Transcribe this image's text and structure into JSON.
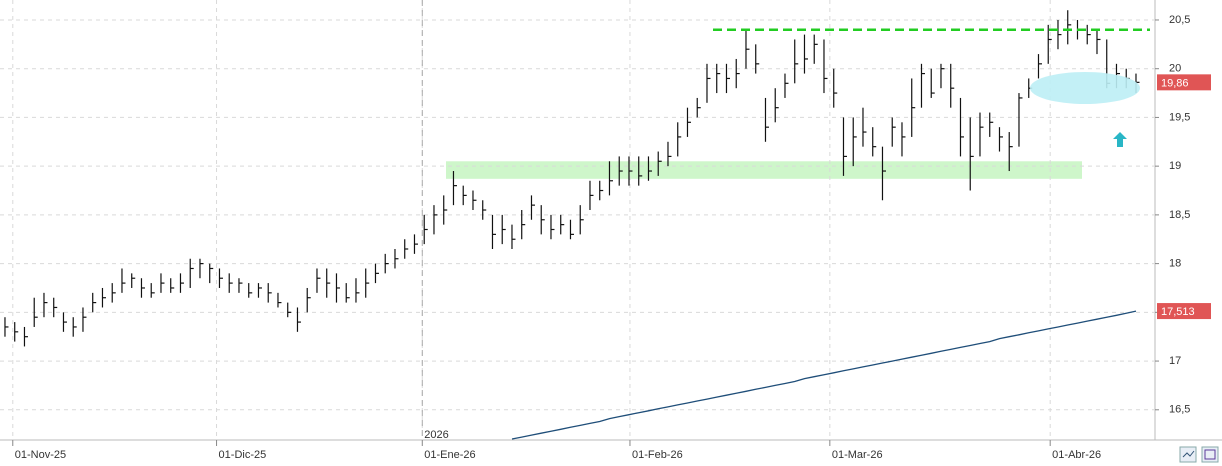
{
  "chart_data": {
    "type": "ohlc",
    "x": [
      0,
      1,
      2,
      3,
      4,
      5,
      6,
      7,
      8,
      9,
      10,
      11,
      12,
      13,
      14,
      15,
      16,
      17,
      18,
      19,
      20,
      21,
      22,
      23,
      24,
      25,
      26,
      27,
      28,
      29,
      30,
      31,
      32,
      33,
      34,
      35,
      36,
      37,
      38,
      39,
      40,
      41,
      42,
      43,
      44,
      45,
      46,
      47,
      48,
      49,
      50,
      51,
      52,
      53,
      54,
      55,
      56,
      57,
      58,
      59,
      60,
      61,
      62,
      63,
      64,
      65,
      66,
      67,
      68,
      69,
      70,
      71,
      72,
      73,
      74,
      75,
      76,
      77,
      78,
      79,
      80,
      81,
      82,
      83,
      84,
      85,
      86,
      87,
      88,
      89,
      90,
      91,
      92,
      93,
      94,
      95,
      96,
      97,
      98,
      99,
      100,
      101,
      102,
      103,
      104,
      105,
      106,
      107,
      108,
      109,
      110,
      111,
      112,
      113,
      114,
      115,
      116
    ],
    "high": [
      17.45,
      17.4,
      17.35,
      17.65,
      17.7,
      17.65,
      17.5,
      17.45,
      17.55,
      17.7,
      17.75,
      17.8,
      17.95,
      17.9,
      17.85,
      17.8,
      17.9,
      17.85,
      17.9,
      18.05,
      18.05,
      18.0,
      17.95,
      17.9,
      17.85,
      17.8,
      17.8,
      17.8,
      17.7,
      17.6,
      17.55,
      17.75,
      17.95,
      17.95,
      17.9,
      17.8,
      17.85,
      17.95,
      18.0,
      18.1,
      18.15,
      18.25,
      18.3,
      18.5,
      18.6,
      18.7,
      18.95,
      18.8,
      18.75,
      18.65,
      18.5,
      18.5,
      18.4,
      18.55,
      18.7,
      18.6,
      18.5,
      18.5,
      18.45,
      18.6,
      18.85,
      18.85,
      19.05,
      19.1,
      19.1,
      19.1,
      19.1,
      19.15,
      19.25,
      19.45,
      19.6,
      19.7,
      20.05,
      20.05,
      20.05,
      20.1,
      20.4,
      20.25,
      19.7,
      19.8,
      19.95,
      20.3,
      20.35,
      20.35,
      20.3,
      20.0,
      19.5,
      19.5,
      19.6,
      19.4,
      19.2,
      19.5,
      19.45,
      19.9,
      20.05,
      20.0,
      20.05,
      20.05,
      19.7,
      19.5,
      19.55,
      19.55,
      19.4,
      19.35,
      19.75,
      19.9,
      20.15,
      20.45,
      20.5,
      20.6,
      20.5,
      20.45,
      20.4,
      20.3,
      20.05,
      20.0,
      19.95
    ],
    "low": [
      17.25,
      17.2,
      17.15,
      17.35,
      17.45,
      17.45,
      17.3,
      17.25,
      17.3,
      17.5,
      17.55,
      17.6,
      17.7,
      17.75,
      17.65,
      17.65,
      17.7,
      17.7,
      17.7,
      17.75,
      17.85,
      17.8,
      17.75,
      17.7,
      17.7,
      17.65,
      17.65,
      17.6,
      17.55,
      17.45,
      17.3,
      17.5,
      17.7,
      17.65,
      17.6,
      17.6,
      17.6,
      17.65,
      17.8,
      17.9,
      17.95,
      18.05,
      18.1,
      18.2,
      18.3,
      18.4,
      18.6,
      18.6,
      18.55,
      18.45,
      18.15,
      18.2,
      18.15,
      18.25,
      18.45,
      18.3,
      18.25,
      18.3,
      18.25,
      18.3,
      18.55,
      18.65,
      18.7,
      18.8,
      18.8,
      18.8,
      18.85,
      18.9,
      19.0,
      19.1,
      19.3,
      19.5,
      19.65,
      19.75,
      19.75,
      19.8,
      20.0,
      19.95,
      19.25,
      19.45,
      19.7,
      19.85,
      19.95,
      20.05,
      19.75,
      19.6,
      18.9,
      19.0,
      19.2,
      19.1,
      18.65,
      19.2,
      19.1,
      19.3,
      19.6,
      19.7,
      19.8,
      19.6,
      19.1,
      18.75,
      19.1,
      19.3,
      19.15,
      18.95,
      19.2,
      19.7,
      19.9,
      20.05,
      20.2,
      20.25,
      20.3,
      20.25,
      20.15,
      19.8,
      19.8,
      19.8,
      19.75
    ],
    "close": [
      17.35,
      17.3,
      17.25,
      17.45,
      17.6,
      17.55,
      17.4,
      17.35,
      17.45,
      17.6,
      17.65,
      17.7,
      17.8,
      17.85,
      17.75,
      17.7,
      17.8,
      17.75,
      17.8,
      17.95,
      18.0,
      17.95,
      17.85,
      17.8,
      17.8,
      17.7,
      17.75,
      17.7,
      17.6,
      17.5,
      17.4,
      17.65,
      17.85,
      17.8,
      17.75,
      17.65,
      17.7,
      17.8,
      17.9,
      18.0,
      18.05,
      18.15,
      18.2,
      18.35,
      18.5,
      18.55,
      18.8,
      18.7,
      18.65,
      18.55,
      18.3,
      18.35,
      18.25,
      18.4,
      18.6,
      18.45,
      18.35,
      18.4,
      18.3,
      18.45,
      18.7,
      18.75,
      18.85,
      18.95,
      18.95,
      18.9,
      18.95,
      19.05,
      19.1,
      19.3,
      19.45,
      19.6,
      19.9,
      19.95,
      19.9,
      19.95,
      20.2,
      20.05,
      19.4,
      19.6,
      19.85,
      20.05,
      20.1,
      20.25,
      19.9,
      19.75,
      19.1,
      19.3,
      19.35,
      19.2,
      18.95,
      19.4,
      19.3,
      19.6,
      19.95,
      19.75,
      20.0,
      19.8,
      19.3,
      19.1,
      19.4,
      19.45,
      19.3,
      19.2,
      19.7,
      19.8,
      20.05,
      20.3,
      20.35,
      20.45,
      20.4,
      20.35,
      20.3,
      19.85,
      19.95,
      19.9,
      19.86
    ],
    "ma": {
      "color": "#1f4e79",
      "values": [
        null,
        null,
        null,
        null,
        null,
        null,
        null,
        null,
        null,
        null,
        null,
        null,
        null,
        null,
        null,
        null,
        null,
        null,
        null,
        null,
        null,
        null,
        null,
        null,
        null,
        null,
        null,
        null,
        null,
        null,
        null,
        null,
        null,
        null,
        null,
        null,
        null,
        null,
        null,
        null,
        null,
        null,
        null,
        null,
        null,
        null,
        null,
        null,
        null,
        null,
        null,
        null,
        16.2,
        16.22,
        16.24,
        16.26,
        16.28,
        16.3,
        16.32,
        16.34,
        16.36,
        16.38,
        16.41,
        16.43,
        16.45,
        16.47,
        16.49,
        16.51,
        16.53,
        16.55,
        16.57,
        16.59,
        16.61,
        16.63,
        16.65,
        16.67,
        16.69,
        16.71,
        16.73,
        16.75,
        16.77,
        16.79,
        16.82,
        16.84,
        16.86,
        16.88,
        16.9,
        16.92,
        16.94,
        16.96,
        16.98,
        17.0,
        17.02,
        17.04,
        17.06,
        17.08,
        17.1,
        17.12,
        17.14,
        17.16,
        17.18,
        17.2,
        17.23,
        17.25,
        17.27,
        17.29,
        17.31,
        17.33,
        17.35,
        17.37,
        17.39,
        17.41,
        17.43,
        17.45,
        17.47,
        17.49,
        17.513
      ]
    },
    "bar_color": "#111111",
    "xlim": [
      -0.51,
      117.95
    ],
    "ylim": [
      16.19,
      20.705
    ],
    "xticks": [
      {
        "value": 0.8,
        "label": "01-Nov-25"
      },
      {
        "value": 21.7,
        "label": "01-Dic-25"
      },
      {
        "value": 42.8,
        "label": "01-Ene-26"
      },
      {
        "value": 64.1,
        "label": "01-Feb-26"
      },
      {
        "value": 84.6,
        "label": "01-Mar-26"
      },
      {
        "value": 107.2,
        "label": "01-Abr-26"
      }
    ],
    "yticks": [
      {
        "value": 20.5,
        "label": "20,5"
      },
      20,
      {
        "value": 19.5,
        "label": "19,5"
      },
      19,
      {
        "value": 18.5,
        "label": "18,5"
      },
      18,
      {
        "value": 17.5,
        "label": "17,5"
      },
      17,
      {
        "value": 16.5,
        "label": "16,5"
      }
    ],
    "year_marker": {
      "value": 42.8,
      "label": "2026"
    },
    "last_labels": [
      {
        "value": 19.86,
        "label": "19,86",
        "color": "#e05555"
      },
      {
        "value": 17.513,
        "label": "17,513",
        "color": "#e05555"
      }
    ],
    "resistance_level": 20.4,
    "support_band": [
      18.87,
      19.05
    ],
    "grid": true
  }
}
